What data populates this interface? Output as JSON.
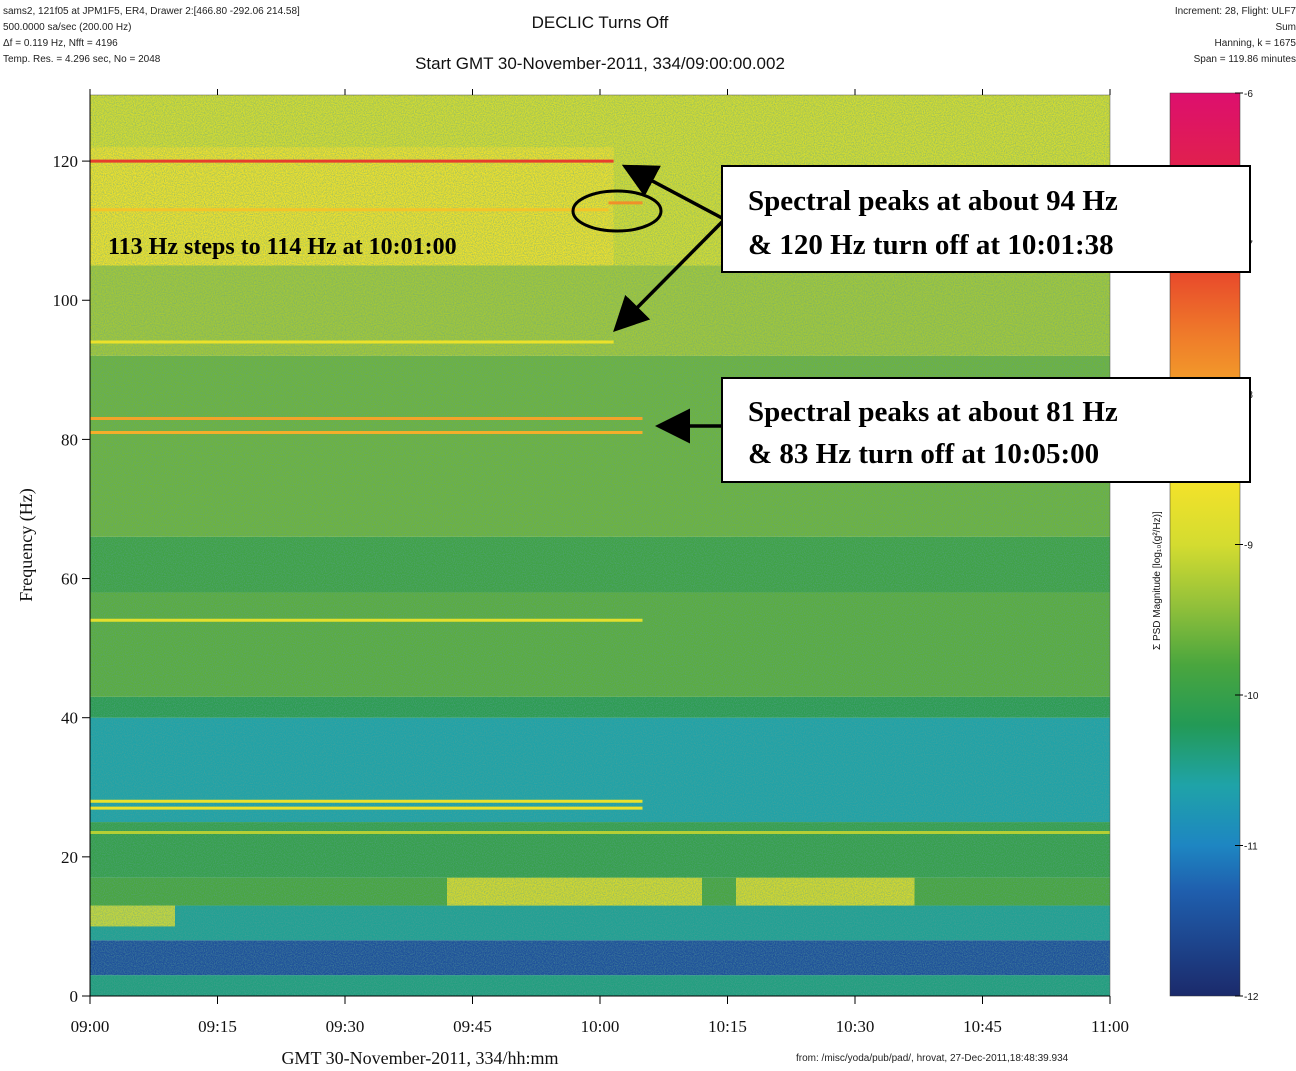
{
  "chart_data": {
    "type": "spectrogram",
    "title": "DECLIC Turns Off",
    "subtitle": "Start GMT 30-November-2011, 334/09:00:00.002",
    "header_left": [
      "sams2, 121f05 at JPM1F5, ER4, Drawer 2:[466.80 -292.06 214.58]",
      "500.0000 sa/sec (200.00 Hz)",
      "Δf = 0.119 Hz,  Nfft = 4196",
      "Temp. Res. = 4.296 sec, No = 2048"
    ],
    "header_right": [
      "Increment:  28, Flight: ULF7",
      "Sum",
      "Hanning, k = 1675",
      "Span = 119.86 minutes"
    ],
    "x_label": "GMT 30-November-2011, 334/hh:mm",
    "y_label": "Frequency (Hz)",
    "colorbar_label": "Σ PSD Magnitude [log₁₀(g²/Hz)]",
    "footer": "from: /misc/yoda/pub/pad/, hrovat, 27-Dec-2011,18:48:39.934",
    "xlim": [
      0,
      120
    ],
    "xticks": [
      {
        "value": 0,
        "label": "09:00"
      },
      {
        "value": 15,
        "label": "09:15"
      },
      {
        "value": 30,
        "label": "09:30"
      },
      {
        "value": 45,
        "label": "09:45"
      },
      {
        "value": 60,
        "label": "10:00"
      },
      {
        "value": 75,
        "label": "10:15"
      },
      {
        "value": 90,
        "label": "10:30"
      },
      {
        "value": 105,
        "label": "10:45"
      },
      {
        "value": 120,
        "label": "11:00"
      }
    ],
    "ylim": [
      0,
      129.5
    ],
    "yticks": [
      0,
      20,
      40,
      60,
      80,
      100,
      120
    ],
    "clim": [
      -12,
      -6
    ],
    "cticks": [
      -6,
      -7,
      -8,
      -9,
      -10,
      -11,
      -12
    ],
    "colormap": [
      {
        "value": -12,
        "color": "#1b2a6b"
      },
      {
        "value": -11.3,
        "color": "#1f5fae"
      },
      {
        "value": -11,
        "color": "#1e86c2"
      },
      {
        "value": -10.6,
        "color": "#1fa3a8"
      },
      {
        "value": -10.2,
        "color": "#239a56"
      },
      {
        "value": -9.8,
        "color": "#4aa63e"
      },
      {
        "value": -9.4,
        "color": "#93c13a"
      },
      {
        "value": -9,
        "color": "#d4dc30"
      },
      {
        "value": -8.6,
        "color": "#f2e22a"
      },
      {
        "value": -8.2,
        "color": "#f5b82a"
      },
      {
        "value": -7.6,
        "color": "#ef7a2a"
      },
      {
        "value": -7,
        "color": "#e5322c"
      },
      {
        "value": -6,
        "color": "#dd0f6e"
      }
    ],
    "bands": [
      {
        "from": 0,
        "to": 3,
        "level": -10.4
      },
      {
        "from": 3,
        "to": 8,
        "level": -11.5
      },
      {
        "from": 8,
        "to": 13,
        "level": -10.5
      },
      {
        "from": 13,
        "to": 17,
        "level": -9.8
      },
      {
        "from": 17,
        "to": 25,
        "level": -10.0
      },
      {
        "from": 25,
        "to": 40,
        "level": -10.6
      },
      {
        "from": 40,
        "to": 43,
        "level": -10.1
      },
      {
        "from": 43,
        "to": 58,
        "level": -9.7
      },
      {
        "from": 58,
        "to": 66,
        "level": -9.9
      },
      {
        "from": 66,
        "to": 92,
        "level": -9.6
      },
      {
        "from": 92,
        "to": 105,
        "level": -9.3
      },
      {
        "from": 105,
        "to": 129.5,
        "level": -9.0
      }
    ],
    "patches": [
      {
        "start": 0,
        "end": 61.6,
        "from": 105,
        "to": 122,
        "level": -8.6
      },
      {
        "start": 42,
        "end": 72,
        "from": 13,
        "to": 17,
        "level": -8.7
      },
      {
        "start": 76,
        "end": 97,
        "from": 13,
        "to": 17,
        "level": -8.7
      },
      {
        "start": 0,
        "end": 10,
        "from": 10,
        "to": 13,
        "level": -8.8
      }
    ],
    "lines": [
      {
        "frequency": 120,
        "start": 0,
        "end": 61.6,
        "level": -7.1
      },
      {
        "frequency": 114,
        "start": 61,
        "end": 65,
        "level": -7.8
      },
      {
        "frequency": 113,
        "start": 0,
        "end": 61,
        "level": -8.3
      },
      {
        "frequency": 94,
        "start": 0,
        "end": 61.6,
        "level": -8.7
      },
      {
        "frequency": 83,
        "start": 0,
        "end": 65,
        "level": -8.0
      },
      {
        "frequency": 81,
        "start": 0,
        "end": 65,
        "level": -8.1
      },
      {
        "frequency": 54,
        "start": 0,
        "end": 65,
        "level": -8.8
      },
      {
        "frequency": 28,
        "start": 0,
        "end": 65,
        "level": -8.7
      },
      {
        "frequency": 27,
        "start": 0,
        "end": 65,
        "level": -8.7
      },
      {
        "frequency": 23.5,
        "start": 0,
        "end": 120,
        "level": -9.2
      }
    ],
    "annotations": [
      "113 Hz steps to 114 Hz at 10:01:00",
      "Spectral peaks at about 94 Hz",
      "& 120 Hz turn off at 10:01:38",
      "Spectral peaks at about 81 Hz",
      "& 83 Hz turn off at 10:05:00"
    ]
  }
}
